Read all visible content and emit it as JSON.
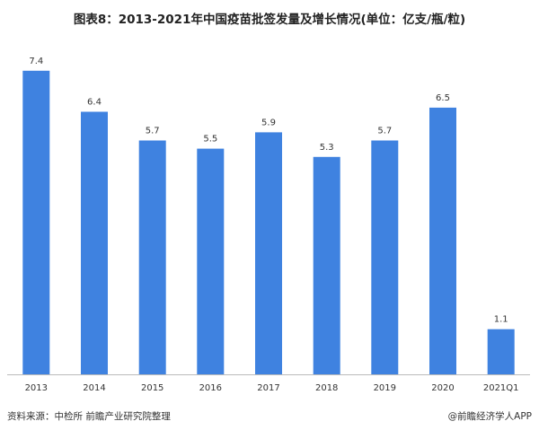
{
  "header": {
    "title": "图表8：2013-2021年中国疫苗批签发量及增长情况(单位：亿支/瓶/粒)"
  },
  "footer": {
    "source": "资料来源：中检所 前瞻产业研究院整理",
    "brand": "@前瞻经济学人APP"
  },
  "colors": {
    "bar": "#3f82e0",
    "axis": "#bbbbbb",
    "text": "#333333"
  },
  "chart_data": {
    "type": "bar",
    "categories": [
      "2013",
      "2014",
      "2015",
      "2016",
      "2017",
      "2018",
      "2019",
      "2020",
      "2021Q1"
    ],
    "values": [
      7.4,
      6.4,
      5.7,
      5.5,
      5.9,
      5.3,
      5.7,
      6.5,
      1.1
    ],
    "ylim": [
      0,
      8
    ],
    "grid": false,
    "legend": false
  }
}
